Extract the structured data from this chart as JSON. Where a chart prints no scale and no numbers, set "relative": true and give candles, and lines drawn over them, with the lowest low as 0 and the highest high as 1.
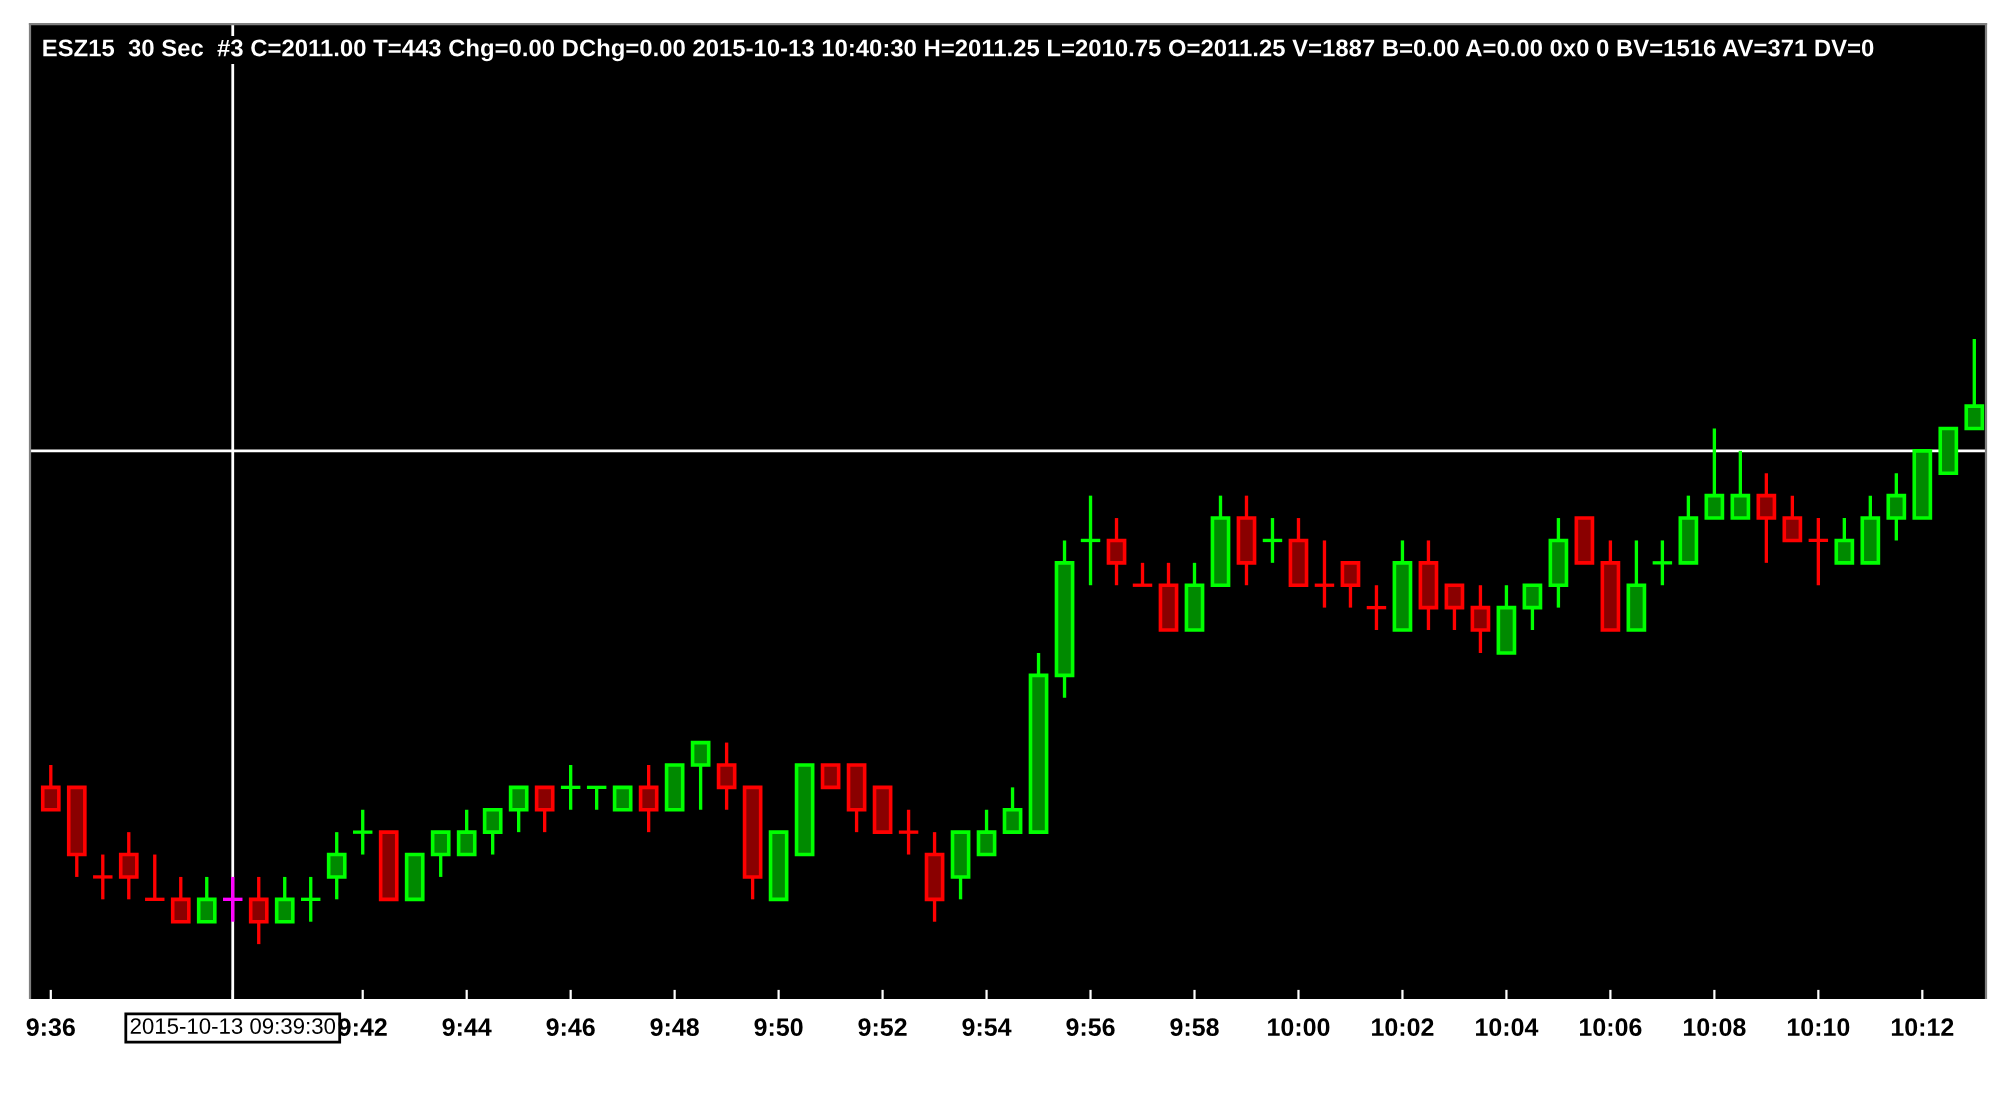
{
  "chart_data": {
    "type": "candlestick",
    "title": "ESZ15  30 Sec  #3 C=2011.00 T=443 Chg=0.00 DChg=0.00 2015-10-13 10:40:30 H=2011.25 L=2010.75 O=2011.25 V=1887 B=0.00 A=0.00 0x0 0 BV=1516 AV=371 DV=0",
    "relative": true,
    "categories": [
      "9:36",
      null,
      null,
      null,
      null,
      null,
      null,
      "2015-10-13 09:39:30",
      null,
      null,
      null,
      null,
      "9:42",
      null,
      null,
      null,
      "9:44",
      null,
      null,
      null,
      "9:46",
      null,
      null,
      null,
      "9:48",
      null,
      null,
      null,
      "9:50",
      null,
      null,
      null,
      "9:52",
      null,
      null,
      null,
      "9:54",
      null,
      null,
      null,
      "9:56",
      null,
      null,
      null,
      "9:58",
      null,
      null,
      null,
      "10:00",
      null,
      null,
      null,
      "10:02",
      null,
      null,
      null,
      "10:04",
      null,
      null,
      null,
      "10:06",
      null,
      null,
      null,
      "10:08",
      null,
      null,
      null,
      "10:10",
      null,
      null,
      null,
      "10:12",
      null,
      null
    ],
    "ohlc": [
      [
        0.259,
        0.296,
        0.222,
        0.222
      ],
      [
        0.259,
        0.259,
        0.111,
        0.148
      ],
      [
        0.111,
        0.148,
        0.074,
        0.111
      ],
      [
        0.148,
        0.185,
        0.074,
        0.111
      ],
      [
        0.074,
        0.148,
        0.074,
        0.074
      ],
      [
        0.074,
        0.111,
        0.037,
        0.037
      ],
      [
        0.037,
        0.111,
        0.037,
        0.074
      ],
      [
        0.074,
        0.111,
        0.037,
        0.074
      ],
      [
        0.074,
        0.111,
        0,
        0.037
      ],
      [
        0.037,
        0.111,
        0.037,
        0.074
      ],
      [
        0.074,
        0.111,
        0.037,
        0.074
      ],
      [
        0.111,
        0.185,
        0.074,
        0.148
      ],
      [
        0.185,
        0.222,
        0.148,
        0.185
      ],
      [
        0.185,
        0.185,
        0.074,
        0.074
      ],
      [
        0.074,
        0.148,
        0.074,
        0.148
      ],
      [
        0.148,
        0.185,
        0.111,
        0.185
      ],
      [
        0.148,
        0.222,
        0.148,
        0.185
      ],
      [
        0.185,
        0.222,
        0.148,
        0.222
      ],
      [
        0.222,
        0.259,
        0.185,
        0.259
      ],
      [
        0.259,
        0.259,
        0.185,
        0.222
      ],
      [
        0.259,
        0.296,
        0.222,
        0.259
      ],
      [
        0.259,
        0.259,
        0.222,
        0.259
      ],
      [
        0.222,
        0.259,
        0.222,
        0.259
      ],
      [
        0.259,
        0.296,
        0.185,
        0.222
      ],
      [
        0.222,
        0.296,
        0.222,
        0.296
      ],
      [
        0.296,
        0.333,
        0.222,
        0.333
      ],
      [
        0.296,
        0.333,
        0.222,
        0.259
      ],
      [
        0.259,
        0.259,
        0.074,
        0.111
      ],
      [
        0.074,
        0.185,
        0.074,
        0.185
      ],
      [
        0.148,
        0.296,
        0.148,
        0.296
      ],
      [
        0.296,
        0.296,
        0.259,
        0.259
      ],
      [
        0.296,
        0.296,
        0.185,
        0.222
      ],
      [
        0.259,
        0.259,
        0.185,
        0.185
      ],
      [
        0.185,
        0.222,
        0.148,
        0.185
      ],
      [
        0.148,
        0.185,
        0.037,
        0.074
      ],
      [
        0.111,
        0.185,
        0.074,
        0.185
      ],
      [
        0.148,
        0.222,
        0.148,
        0.185
      ],
      [
        0.185,
        0.259,
        0.185,
        0.222
      ],
      [
        0.185,
        0.481,
        0.185,
        0.444
      ],
      [
        0.444,
        0.667,
        0.407,
        0.63
      ],
      [
        0.667,
        0.741,
        0.593,
        0.667
      ],
      [
        0.667,
        0.704,
        0.593,
        0.63
      ],
      [
        0.593,
        0.63,
        0.593,
        0.593
      ],
      [
        0.593,
        0.63,
        0.519,
        0.519
      ],
      [
        0.519,
        0.63,
        0.519,
        0.593
      ],
      [
        0.593,
        0.741,
        0.593,
        0.704
      ],
      [
        0.704,
        0.741,
        0.593,
        0.63
      ],
      [
        0.667,
        0.704,
        0.63,
        0.667
      ],
      [
        0.667,
        0.704,
        0.593,
        0.593
      ],
      [
        0.593,
        0.667,
        0.556,
        0.593
      ],
      [
        0.63,
        0.63,
        0.556,
        0.593
      ],
      [
        0.556,
        0.593,
        0.519,
        0.556
      ],
      [
        0.519,
        0.667,
        0.519,
        0.63
      ],
      [
        0.63,
        0.667,
        0.519,
        0.556
      ],
      [
        0.593,
        0.593,
        0.519,
        0.556
      ],
      [
        0.556,
        0.593,
        0.481,
        0.519
      ],
      [
        0.481,
        0.593,
        0.481,
        0.556
      ],
      [
        0.556,
        0.593,
        0.519,
        0.593
      ],
      [
        0.593,
        0.704,
        0.556,
        0.667
      ],
      [
        0.704,
        0.704,
        0.63,
        0.63
      ],
      [
        0.63,
        0.667,
        0.519,
        0.519
      ],
      [
        0.519,
        0.667,
        0.519,
        0.593
      ],
      [
        0.63,
        0.667,
        0.593,
        0.63
      ],
      [
        0.63,
        0.741,
        0.63,
        0.704
      ],
      [
        0.704,
        0.852,
        0.704,
        0.741
      ],
      [
        0.704,
        0.815,
        0.704,
        0.741
      ],
      [
        0.741,
        0.778,
        0.63,
        0.704
      ],
      [
        0.704,
        0.741,
        0.667,
        0.667
      ],
      [
        0.667,
        0.704,
        0.593,
        0.667
      ],
      [
        0.63,
        0.704,
        0.63,
        0.667
      ],
      [
        0.63,
        0.741,
        0.63,
        0.704
      ],
      [
        0.704,
        0.778,
        0.667,
        0.741
      ],
      [
        0.704,
        0.815,
        0.704,
        0.815
      ],
      [
        0.778,
        0.852,
        0.778,
        0.852
      ],
      [
        0.852,
        1,
        0.852,
        0.889
      ]
    ],
    "colors": [
      "#ff0000",
      "#ff0000",
      "#ff0000",
      "#ff0000",
      "#ff0000",
      "#ff0000",
      "#00ff00",
      "#ff00ff",
      "#ff0000",
      "#00ff00",
      "#00ff00",
      "#00ff00",
      "#00ff00",
      "#ff0000",
      "#00ff00",
      "#00ff00",
      "#00ff00",
      "#00ff00",
      "#00ff00",
      "#ff0000",
      "#00ff00",
      "#00ff00",
      "#00ff00",
      "#ff0000",
      "#00ff00",
      "#00ff00",
      "#ff0000",
      "#ff0000",
      "#00ff00",
      "#00ff00",
      "#ff0000",
      "#ff0000",
      "#ff0000",
      "#ff0000",
      "#ff0000",
      "#00ff00",
      "#00ff00",
      "#00ff00",
      "#00ff00",
      "#00ff00",
      "#00ff00",
      "#ff0000",
      "#ff0000",
      "#ff0000",
      "#00ff00",
      "#00ff00",
      "#ff0000",
      "#00ff00",
      "#ff0000",
      "#ff0000",
      "#ff0000",
      "#ff0000",
      "#00ff00",
      "#ff0000",
      "#ff0000",
      "#ff0000",
      "#00ff00",
      "#00ff00",
      "#00ff00",
      "#ff0000",
      "#ff0000",
      "#00ff00",
      "#00ff00",
      "#00ff00",
      "#00ff00",
      "#00ff00",
      "#ff0000",
      "#ff0000",
      "#ff0000",
      "#00ff00",
      "#00ff00",
      "#00ff00",
      "#00ff00",
      "#00ff00",
      "#00ff00"
    ],
    "ref_lines": [
      {
        "axis": "x",
        "value": "2015-10-13 09:39:30",
        "color": "#ffffff"
      },
      {
        "axis": "y",
        "value": 0.815,
        "color": "#ffffff"
      }
    ],
    "grid": false
  }
}
